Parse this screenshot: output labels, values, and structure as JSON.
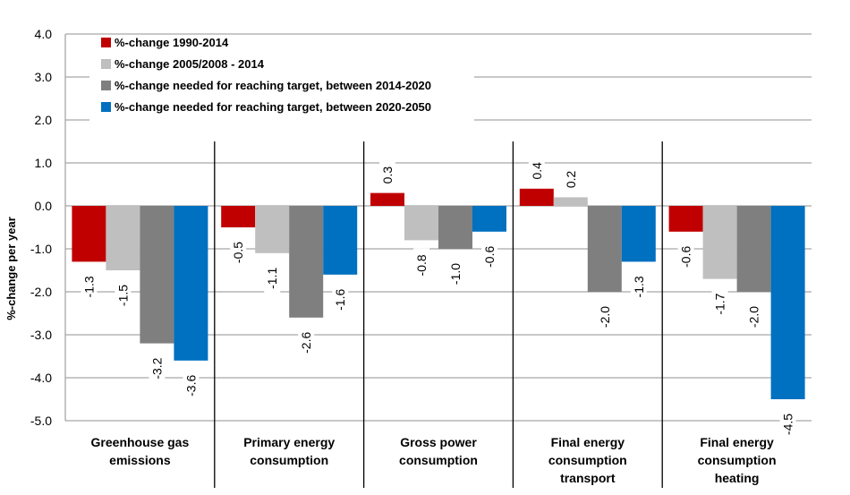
{
  "chart_data": {
    "type": "bar",
    "ylabel": "%-change per year",
    "ylim": [
      -5.0,
      4.0
    ],
    "yticks": [
      "4.0",
      "3.0",
      "2.0",
      "1.0",
      "0.0",
      "-1.0",
      "-2.0",
      "-3.0",
      "-4.0",
      "-5.0"
    ],
    "grid": true,
    "legend_position": "top-left",
    "categories": [
      [
        "Greenhouse gas",
        "emissions"
      ],
      [
        "Primary energy",
        "consumption"
      ],
      [
        "Gross power",
        "consumption"
      ],
      [
        "Final energy",
        "consumption",
        "transport"
      ],
      [
        "Final energy",
        "consumption",
        "heating"
      ]
    ],
    "series": [
      {
        "name": "%-change 1990-2014",
        "color": "#c00000",
        "values": [
          -1.3,
          -0.5,
          0.3,
          0.4,
          -0.6
        ],
        "labels": [
          "-1.3",
          "-0.5",
          "0.3",
          "0.4",
          "-0.6"
        ]
      },
      {
        "name": "%-change 2005/2008 - 2014",
        "color": "#bfbfbf",
        "values": [
          -1.5,
          -1.1,
          -0.8,
          0.2,
          -1.7
        ],
        "labels": [
          "-1.5",
          "-1.1",
          "-0.8",
          "0.2",
          "-1.7"
        ]
      },
      {
        "name": "%-change needed for reaching target, between 2014-2020",
        "color": "#7f7f7f",
        "values": [
          -3.2,
          -2.6,
          -1.0,
          -2.0,
          -2.0
        ],
        "labels": [
          "-3.2",
          "-2.6",
          "-1.0",
          "-2.0",
          "-2.0"
        ]
      },
      {
        "name": "%-change needed for reaching target, between 2020-2050",
        "color": "#0070c0",
        "values": [
          -3.6,
          -1.6,
          -0.6,
          -1.3,
          -4.5
        ],
        "labels": [
          "-3.6",
          "-1.6",
          "-0.6",
          "-1.3",
          "-4.5"
        ]
      }
    ]
  }
}
